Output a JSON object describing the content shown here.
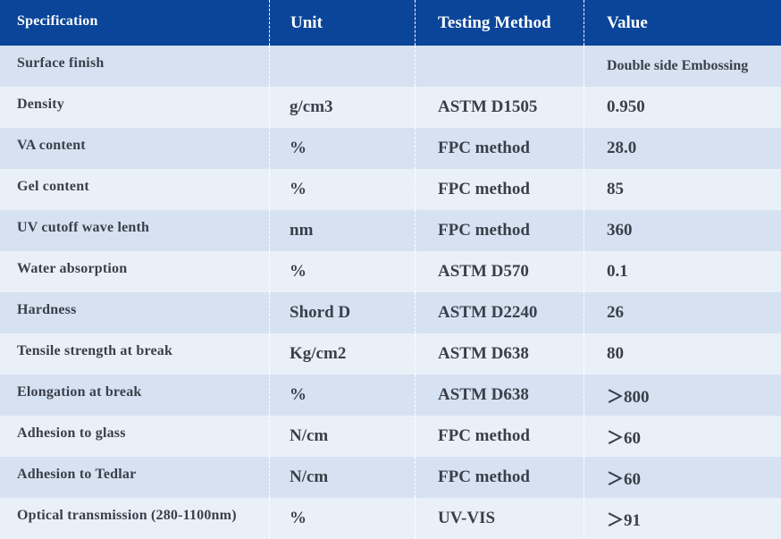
{
  "table": {
    "headers": [
      "Specification",
      "Unit",
      "Testing Method",
      "Value"
    ],
    "rows": [
      [
        "Surface finish",
        "",
        "",
        "Double side Embossing"
      ],
      [
        "Density",
        "g/cm3",
        "ASTM D1505",
        "0.950"
      ],
      [
        "VA content",
        "%",
        "FPC method",
        "28.0"
      ],
      [
        "Gel content",
        "%",
        "FPC method",
        "85"
      ],
      [
        "UV cutoff wave lenth",
        "nm",
        "FPC method",
        "360"
      ],
      [
        "Water absorption",
        "%",
        "ASTM D570",
        "0.1"
      ],
      [
        "Hardness",
        "Shord D",
        "ASTM D2240",
        "26"
      ],
      [
        "Tensile strength at break",
        "Kg/cm2",
        "ASTM D638",
        "80"
      ],
      [
        "Elongation at break",
        "%",
        "ASTM D638",
        "＞800"
      ],
      [
        "Adhesion to glass",
        "N/cm",
        "FPC method",
        "＞60"
      ],
      [
        "Adhesion to Tedlar",
        "N/cm",
        "FPC method",
        "＞60"
      ],
      [
        "Optical transmission (280-1100nm)",
        "%",
        "UV-VIS",
        "＞91"
      ]
    ]
  },
  "colors": {
    "header_bg": "#0a4599",
    "row_odd_bg": "#d6e2f1",
    "row_even_bg": "#eaf0f8",
    "text": "#3a3f4a"
  }
}
